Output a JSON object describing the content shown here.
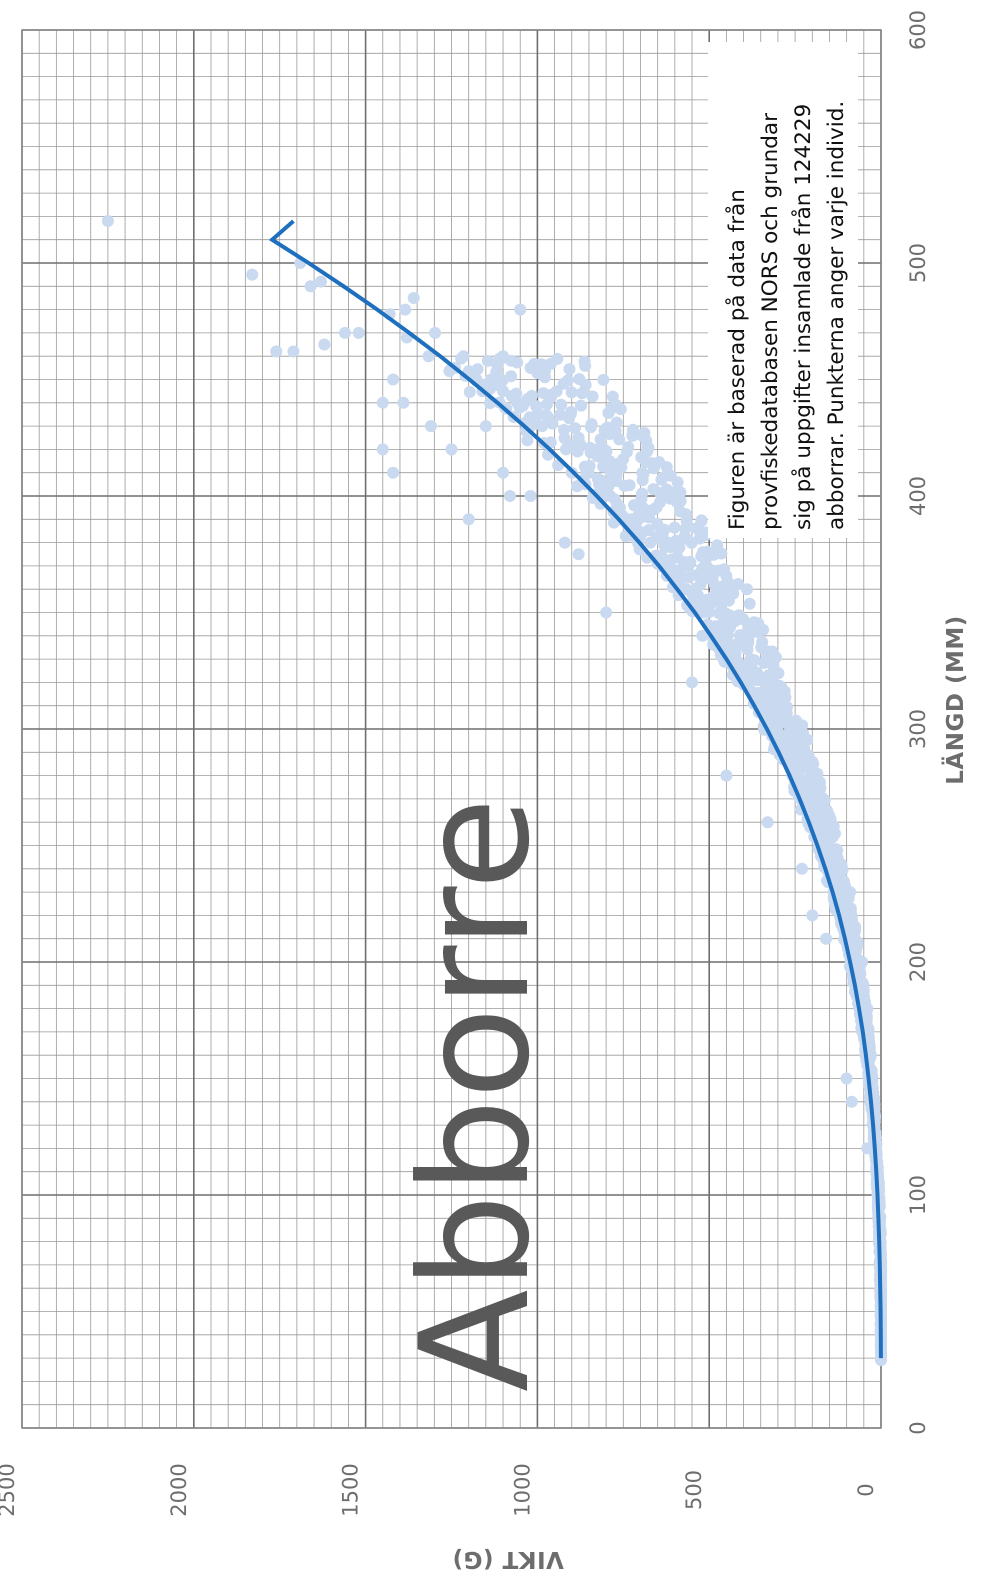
{
  "chart_data": {
    "type": "scatter",
    "title": "Abborre",
    "xlabel": "LÄNGD (MM)",
    "ylabel": "VIKT (G)",
    "xlim": [
      0,
      600
    ],
    "ylim": [
      0,
      2500
    ],
    "x_ticks": [
      "0",
      "100",
      "200",
      "300",
      "400",
      "500",
      "600"
    ],
    "y_ticks": [
      "0",
      "500",
      "1000",
      "1500",
      "2000",
      "2500"
    ],
    "x_step": 100,
    "y_step": 500,
    "x_minor_step": 10,
    "y_minor_step": 50,
    "grid": true,
    "orientation": "rotated-90-counterclockwise",
    "annotation": [
      "Figuren är baserad på data från",
      "provfiskedatabasen NORS och grundar",
      "sig på uppgifter insamlade från 124229",
      "abborrar. Punkterna anger varje individ."
    ],
    "individuals": 124229,
    "series": [
      {
        "type": "scatter",
        "color": "#c9d9ef",
        "points_sampled": [
          [
            30,
            0
          ],
          [
            40,
            1
          ],
          [
            50,
            1
          ],
          [
            60,
            2
          ],
          [
            70,
            3
          ],
          [
            80,
            5
          ],
          [
            90,
            7
          ],
          [
            100,
            10
          ],
          [
            110,
            13
          ],
          [
            120,
            17
          ],
          [
            130,
            22
          ],
          [
            140,
            28
          ],
          [
            150,
            35
          ],
          [
            160,
            43
          ],
          [
            170,
            53
          ],
          [
            180,
            63
          ],
          [
            190,
            75
          ],
          [
            200,
            88
          ],
          [
            210,
            103
          ],
          [
            220,
            120
          ],
          [
            230,
            138
          ],
          [
            240,
            158
          ],
          [
            250,
            180
          ],
          [
            260,
            204
          ],
          [
            270,
            230
          ],
          [
            280,
            258
          ],
          [
            290,
            288
          ],
          [
            300,
            320
          ],
          [
            310,
            355
          ],
          [
            320,
            392
          ],
          [
            330,
            432
          ],
          [
            340,
            474
          ],
          [
            350,
            519
          ],
          [
            360,
            567
          ],
          [
            370,
            618
          ],
          [
            380,
            671
          ],
          [
            390,
            728
          ],
          [
            400,
            788
          ],
          [
            410,
            851
          ],
          [
            420,
            917
          ],
          [
            430,
            986
          ],
          [
            440,
            1059
          ],
          [
            450,
            1135
          ],
          [
            460,
            1215
          ],
          [
            470,
            1298
          ],
          [
            480,
            1385
          ],
          [
            518,
            2250
          ],
          [
            495,
            1830
          ],
          [
            500,
            1690
          ],
          [
            492,
            1630
          ],
          [
            490,
            1660
          ],
          [
            462,
            1760
          ],
          [
            462,
            1710
          ],
          [
            470,
            1520
          ],
          [
            480,
            1050
          ],
          [
            478,
            1430
          ],
          [
            485,
            1360
          ],
          [
            468,
            1380
          ],
          [
            455,
            1020
          ],
          [
            445,
            1100
          ],
          [
            420,
            1450
          ],
          [
            410,
            1420
          ],
          [
            400,
            1020
          ],
          [
            395,
            760
          ],
          [
            390,
            1200
          ],
          [
            380,
            920
          ],
          [
            375,
            880
          ],
          [
            470,
            1560
          ],
          [
            465,
            1620
          ],
          [
            440,
            1390
          ],
          [
            430,
            1310
          ],
          [
            350,
            800
          ],
          [
            360,
            390
          ],
          [
            320,
            550
          ],
          [
            300,
            340
          ],
          [
            310,
            320
          ],
          [
            280,
            450
          ],
          [
            260,
            330
          ],
          [
            240,
            230
          ],
          [
            230,
            90
          ],
          [
            220,
            200
          ],
          [
            210,
            160
          ],
          [
            150,
            100
          ],
          [
            140,
            85
          ],
          [
            180,
            40
          ],
          [
            200,
            55
          ],
          [
            120,
            40
          ],
          [
            340,
            520
          ],
          [
            355,
            480
          ],
          [
            370,
            560
          ],
          [
            385,
            640
          ],
          [
            400,
            1080
          ],
          [
            415,
            790
          ],
          [
            425,
            880
          ],
          [
            435,
            1000
          ],
          [
            445,
            1160
          ],
          [
            455,
            1240
          ],
          [
            450,
            1420
          ],
          [
            440,
            1450
          ],
          [
            460,
            1100
          ],
          [
            430,
            1150
          ],
          [
            420,
            1250
          ],
          [
            410,
            1100
          ],
          [
            405,
            860
          ],
          [
            390,
            760
          ],
          [
            380,
            620
          ],
          [
            365,
            560
          ],
          [
            345,
            440
          ],
          [
            330,
            380
          ],
          [
            315,
            300
          ],
          [
            295,
            250
          ],
          [
            275,
            190
          ],
          [
            255,
            150
          ],
          [
            235,
            110
          ],
          [
            215,
            75
          ],
          [
            195,
            60
          ],
          [
            175,
            45
          ],
          [
            160,
            30
          ]
        ]
      },
      {
        "type": "line",
        "name": "",
        "color": "#1f6fbf",
        "x": [
          30,
          40,
          50,
          60,
          70,
          80,
          90,
          100,
          110,
          120,
          130,
          140,
          150,
          160,
          170,
          180,
          190,
          200,
          210,
          220,
          230,
          240,
          250,
          260,
          270,
          280,
          290,
          300,
          310,
          320,
          330,
          340,
          350,
          360,
          370,
          380,
          390,
          400,
          410,
          420,
          430,
          440,
          450,
          460,
          470,
          480,
          490,
          500,
          510,
          518
        ],
        "y": [
          0.3,
          0.7,
          1.3,
          2.2,
          3.5,
          5.2,
          7.5,
          10.3,
          13.8,
          18,
          23,
          29,
          36,
          44,
          53,
          64,
          76,
          90,
          105,
          122,
          141,
          162,
          185,
          210,
          237,
          266,
          298,
          332,
          369,
          408,
          450,
          495,
          542,
          593,
          646,
          703,
          763,
          827,
          894,
          964,
          1038,
          1116,
          1198,
          1283,
          1373,
          1466,
          1564,
          1666,
          1772,
          1710
        ]
      }
    ]
  }
}
